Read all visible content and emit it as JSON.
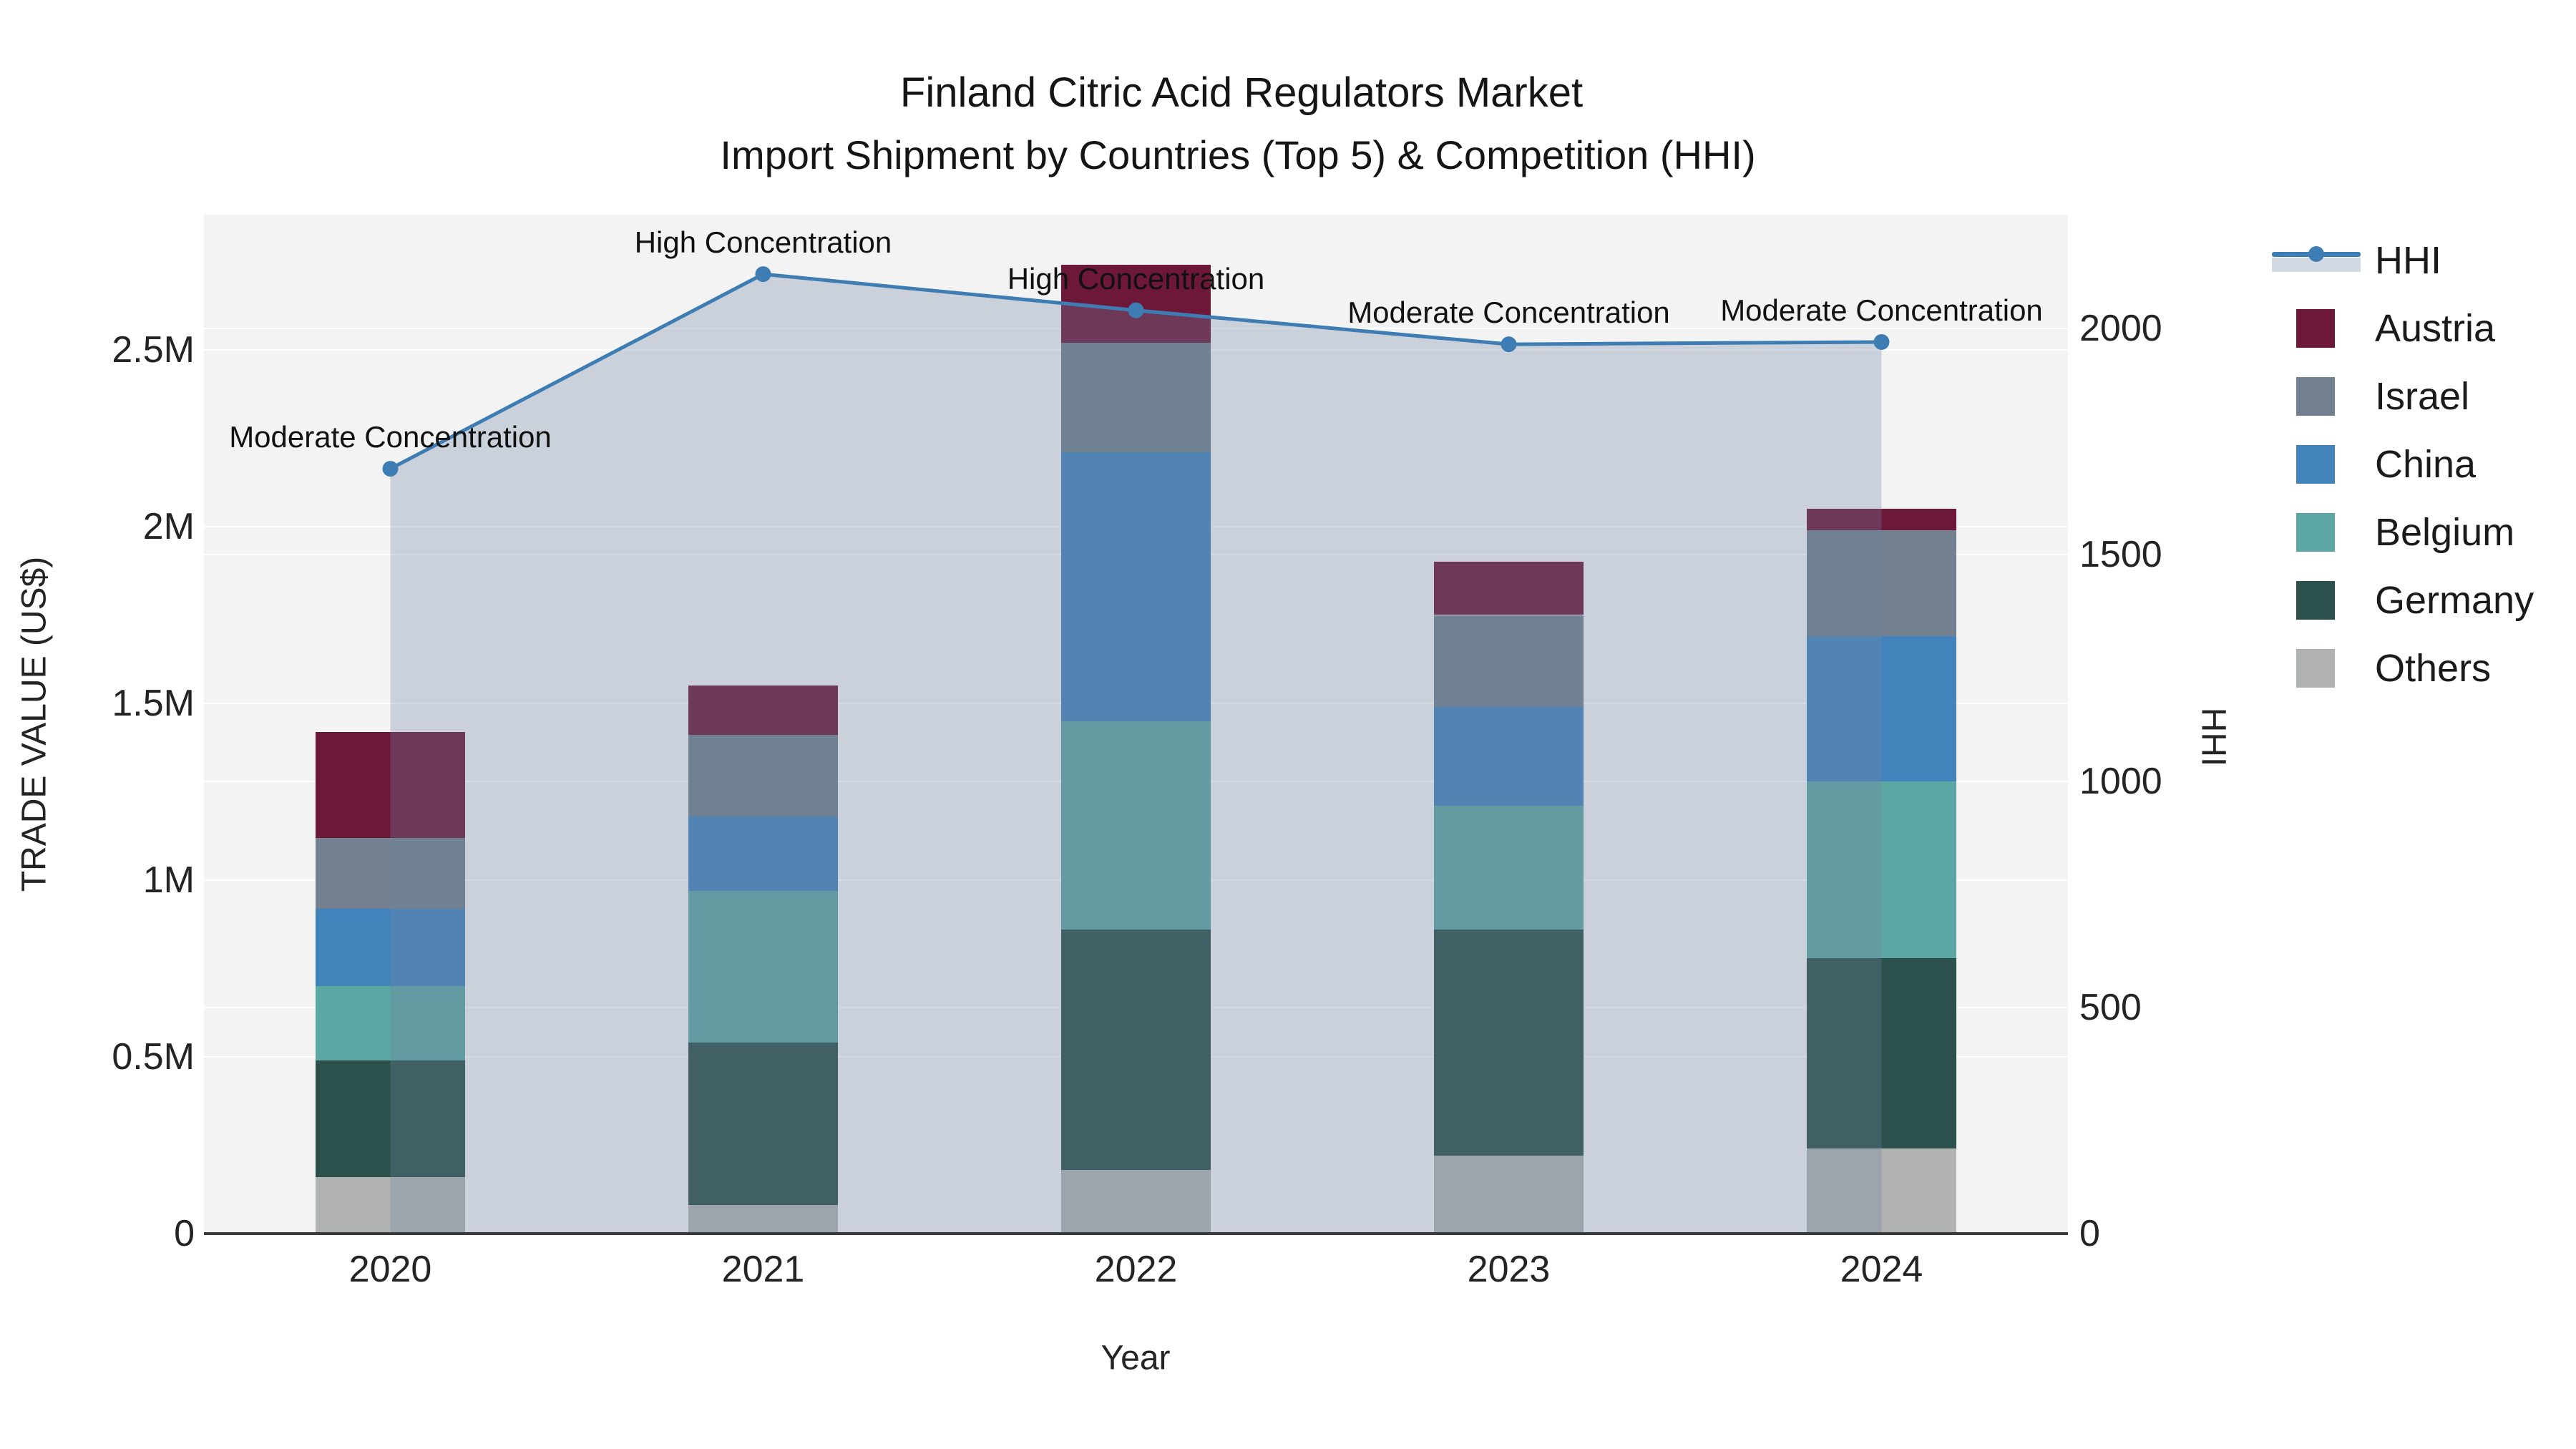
{
  "title": {
    "line1": "Finland Citric Acid Regulators Market",
    "line2": "Import Shipment by Countries (Top 5) & Competition (HHI)"
  },
  "chart_data": {
    "type": "stacked-bar+line",
    "categories": [
      "2020",
      "2021",
      "2022",
      "2023",
      "2024"
    ],
    "bar_value_unit": "million US$",
    "series": [
      {
        "name": "Others",
        "color": "#b0b3b1",
        "values": [
          0.16,
          0.08,
          0.18,
          0.22,
          0.24
        ]
      },
      {
        "name": "Germany",
        "color": "#2c504c",
        "values": [
          0.33,
          0.46,
          0.68,
          0.64,
          0.54
        ]
      },
      {
        "name": "Belgium",
        "color": "#5ca7a3",
        "values": [
          0.21,
          0.43,
          0.59,
          0.35,
          0.5
        ]
      },
      {
        "name": "China",
        "color": "#4383bb",
        "values": [
          0.22,
          0.21,
          0.76,
          0.28,
          0.41
        ]
      },
      {
        "name": "Israel",
        "color": "#72808f",
        "values": [
          0.2,
          0.23,
          0.31,
          0.26,
          0.3
        ]
      },
      {
        "name": "Austria",
        "color": "#6d1839",
        "values": [
          0.3,
          0.14,
          0.22,
          0.15,
          0.06
        ]
      }
    ],
    "bar_totals": [
      1.42,
      1.55,
      2.74,
      1.9,
      2.05
    ],
    "line": {
      "name": "HHI",
      "color": "#3e7db3",
      "fill": "rgba(113,133,160,0.31)",
      "values": [
        1690,
        2120,
        2040,
        1965,
        1970
      ]
    },
    "annotations": [
      "Moderate Concentration",
      "High Concentration",
      "High Concentration",
      "Moderate Concentration",
      "Moderate Concentration"
    ],
    "yaxis": {
      "title": "TRADE VALUE (US$)",
      "ticks": [
        {
          "label": "0",
          "value": 0
        },
        {
          "label": "0.5M",
          "value": 0.5
        },
        {
          "label": "1M",
          "value": 1.0
        },
        {
          "label": "1.5M",
          "value": 1.5
        },
        {
          "label": "2M",
          "value": 2.0
        },
        {
          "label": "2.5M",
          "value": 2.5
        }
      ],
      "max": 2.88
    },
    "y2axis": {
      "title": "HHI",
      "ticks": [
        {
          "label": "0",
          "value": 0
        },
        {
          "label": "500",
          "value": 500
        },
        {
          "label": "1000",
          "value": 1000
        },
        {
          "label": "1500",
          "value": 1500
        },
        {
          "label": "2000",
          "value": 2000
        }
      ],
      "max": 2252
    },
    "xaxis": {
      "title": "Year"
    },
    "legend": [
      "HHI",
      "Austria",
      "Israel",
      "China",
      "Belgium",
      "Germany",
      "Others"
    ],
    "grid": true,
    "legend_position": "right"
  }
}
